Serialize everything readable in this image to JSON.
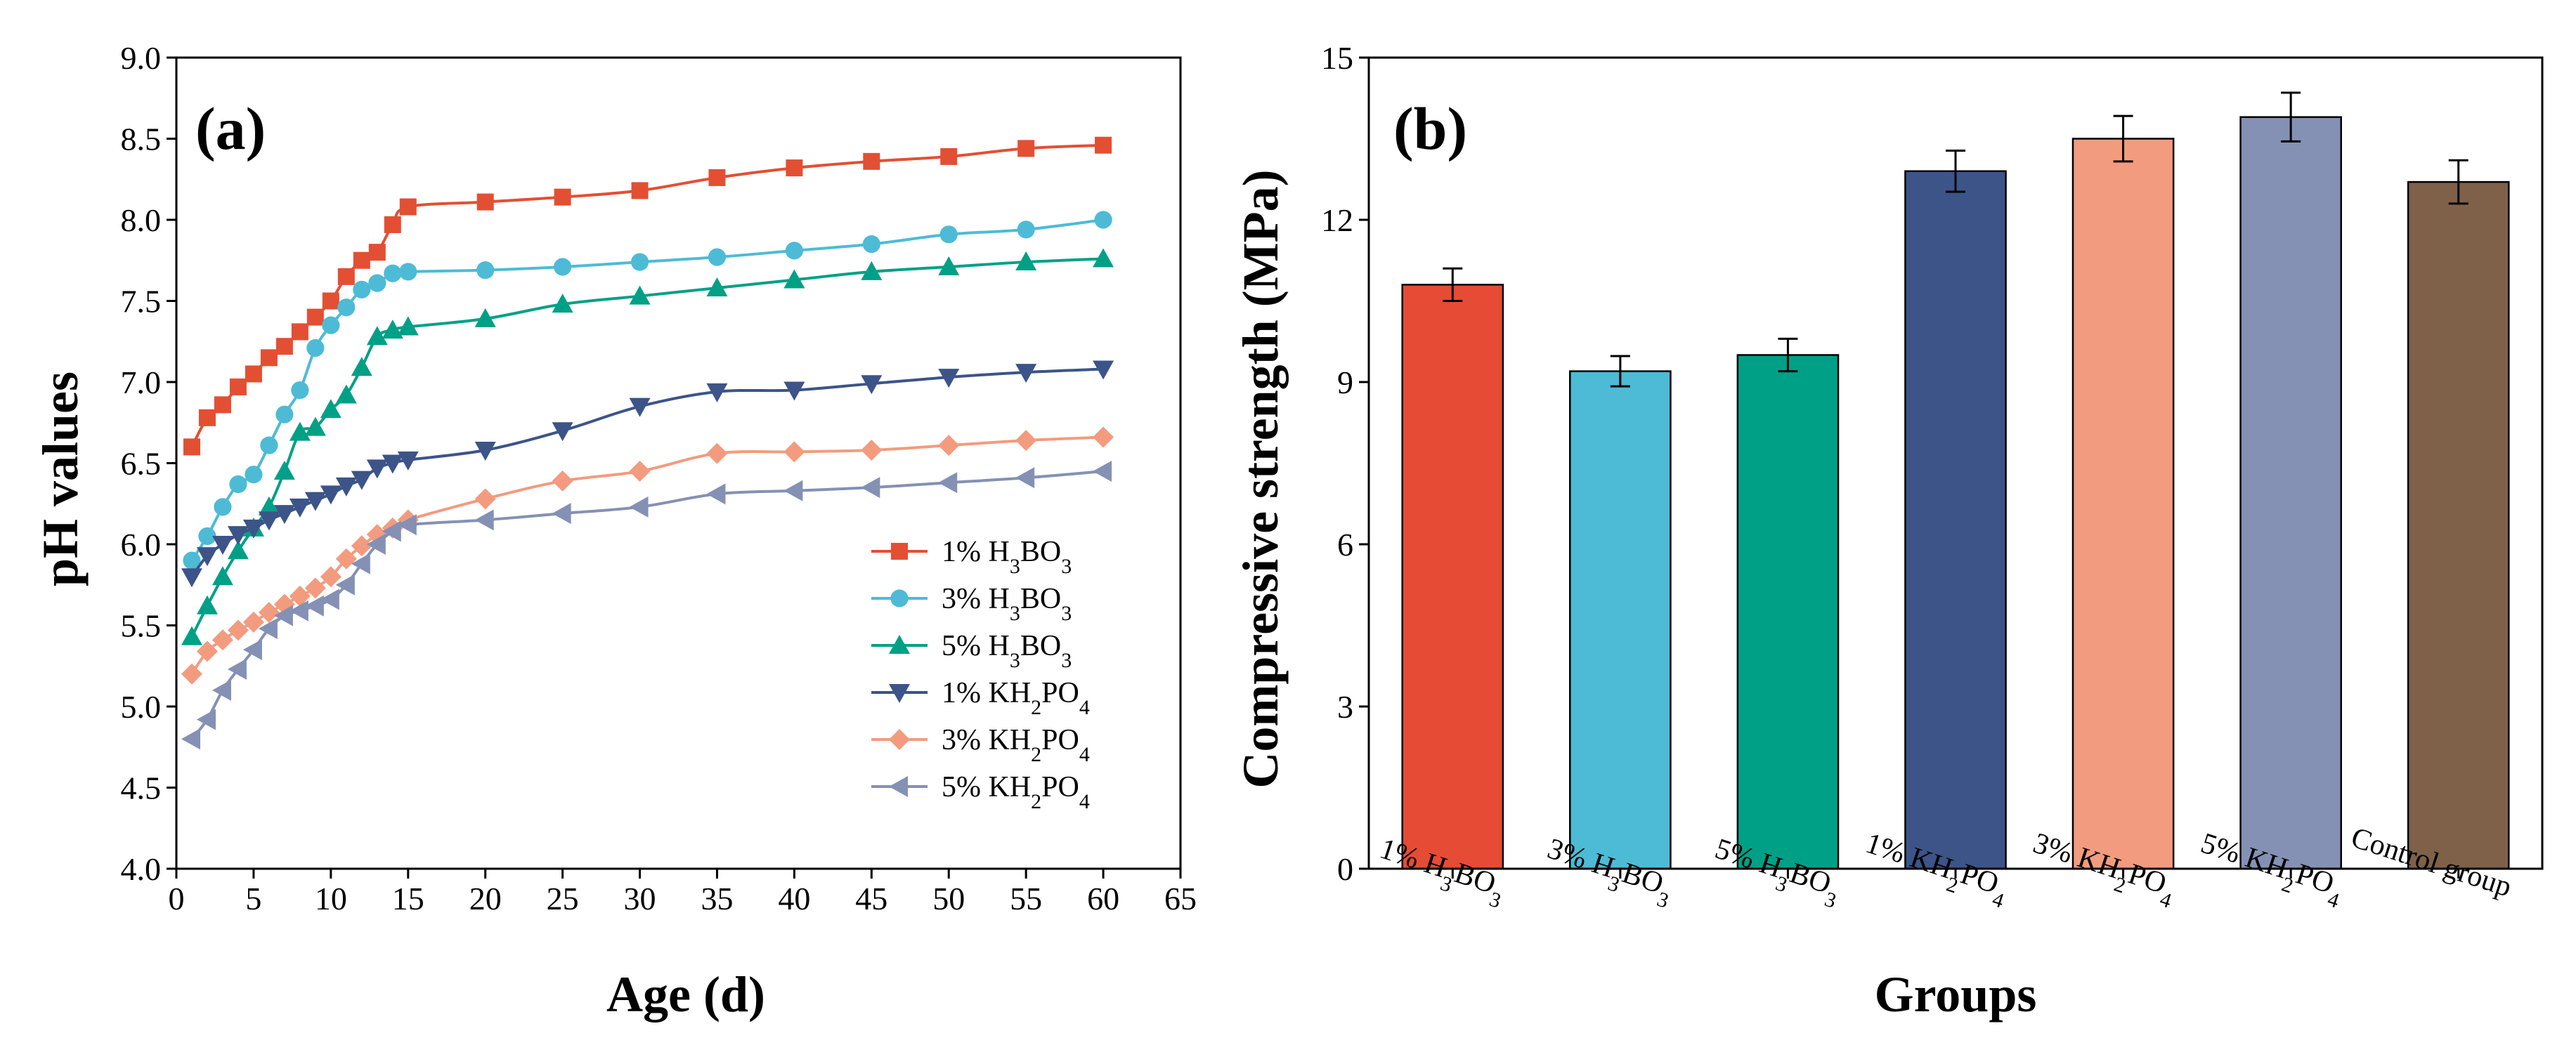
{
  "panels": [
    {
      "panel_label": "(a)",
      "colors": {
        "1% H3BO3": "#E34F33",
        "3% H3BO3": "#4DBBD6",
        "5% H3BO3": "#00A087",
        "1% KH2PO4": "#3C5488",
        "3% KH2PO4": "#F39B7F",
        "5% KH2PO4": "#8491B4"
      },
      "markers": {
        "1% H3BO3": "square",
        "3% H3BO3": "circle",
        "5% H3BO3": "triangle-up",
        "1% KH2PO4": "triangle-down",
        "3% KH2PO4": "diamond",
        "5% KH2PO4": "triangle-left"
      }
    },
    {
      "panel_label": "(b)",
      "colors": [
        "#E64B35",
        "#4DBBD5",
        "#00A087",
        "#3C5488",
        "#F39B7F",
        "#8491B4",
        "#7E6148"
      ]
    }
  ],
  "chart_data": [
    {
      "type": "line",
      "title": "",
      "xlabel": "Age (d)",
      "ylabel": "pH values",
      "xlim": [
        0,
        65
      ],
      "ylim": [
        4.0,
        9.0
      ],
      "x_ticks": [
        "0",
        "5",
        "10",
        "15",
        "20",
        "25",
        "30",
        "35",
        "40",
        "45",
        "50",
        "55",
        "60",
        "65"
      ],
      "y_ticks": [
        "4.0",
        "4.5",
        "5.0",
        "5.5",
        "6.0",
        "6.5",
        "7.0",
        "7.5",
        "8.0",
        "8.5",
        "9.0"
      ],
      "legend_position": "lower-right",
      "series": [
        {
          "name": "1% H3BO3",
          "label": {
            "pre": "1% H",
            "s1": "3",
            "mid": "BO",
            "s2": "3"
          },
          "x": [
            1,
            2,
            3,
            4,
            5,
            6,
            7,
            8,
            9,
            10,
            11,
            12,
            13,
            14,
            15,
            20,
            25,
            30,
            35,
            40,
            45,
            50,
            55,
            60
          ],
          "y": [
            6.6,
            6.78,
            6.86,
            6.97,
            7.05,
            7.15,
            7.22,
            7.31,
            7.4,
            7.5,
            7.65,
            7.75,
            7.8,
            7.97,
            8.08,
            8.11,
            8.14,
            8.18,
            8.26,
            8.32,
            8.36,
            8.39,
            8.44,
            8.46
          ]
        },
        {
          "name": "3% H3BO3",
          "label": {
            "pre": "3% H",
            "s1": "3",
            "mid": "BO",
            "s2": "3"
          },
          "x": [
            1,
            2,
            3,
            4,
            5,
            6,
            7,
            8,
            9,
            10,
            11,
            12,
            13,
            14,
            15,
            20,
            25,
            30,
            35,
            40,
            45,
            50,
            55,
            60
          ],
          "y": [
            5.9,
            6.05,
            6.23,
            6.37,
            6.43,
            6.61,
            6.8,
            6.95,
            7.21,
            7.35,
            7.46,
            7.57,
            7.61,
            7.67,
            7.68,
            7.69,
            7.71,
            7.74,
            7.77,
            7.81,
            7.85,
            7.91,
            7.94,
            8.0
          ]
        },
        {
          "name": "5% H3BO3",
          "label": {
            "pre": "5% H",
            "s1": "3",
            "mid": "BO",
            "s2": "3"
          },
          "x": [
            1,
            2,
            3,
            4,
            5,
            6,
            7,
            8,
            9,
            10,
            11,
            12,
            13,
            14,
            15,
            20,
            25,
            30,
            35,
            40,
            45,
            50,
            55,
            60
          ],
          "y": [
            5.43,
            5.62,
            5.8,
            5.96,
            6.1,
            6.23,
            6.45,
            6.69,
            6.72,
            6.83,
            6.92,
            7.09,
            7.28,
            7.32,
            7.34,
            7.39,
            7.48,
            7.53,
            7.58,
            7.63,
            7.68,
            7.71,
            7.74,
            7.76
          ]
        },
        {
          "name": "1% KH2PO4",
          "label": {
            "pre": "1% KH",
            "s1": "2",
            "mid": "PO",
            "s2": "4"
          },
          "x": [
            1,
            2,
            3,
            4,
            5,
            6,
            7,
            8,
            9,
            10,
            11,
            12,
            13,
            14,
            15,
            20,
            25,
            30,
            35,
            40,
            45,
            50,
            55,
            60
          ],
          "y": [
            5.8,
            5.93,
            6.0,
            6.06,
            6.1,
            6.15,
            6.19,
            6.23,
            6.27,
            6.31,
            6.36,
            6.4,
            6.47,
            6.5,
            6.52,
            6.58,
            6.7,
            6.85,
            6.94,
            6.95,
            6.99,
            7.03,
            7.06,
            7.08
          ]
        },
        {
          "name": "3% KH2PO4",
          "label": {
            "pre": "3% KH",
            "s1": "2",
            "mid": "PO",
            "s2": "4"
          },
          "x": [
            1,
            2,
            3,
            4,
            5,
            6,
            7,
            8,
            9,
            10,
            11,
            12,
            13,
            14,
            15,
            20,
            25,
            30,
            35,
            40,
            45,
            50,
            55,
            60
          ],
          "y": [
            5.2,
            5.34,
            5.41,
            5.47,
            5.52,
            5.58,
            5.63,
            5.68,
            5.73,
            5.8,
            5.91,
            5.99,
            6.06,
            6.1,
            6.15,
            6.28,
            6.39,
            6.45,
            6.56,
            6.57,
            6.58,
            6.61,
            6.64,
            6.66
          ]
        },
        {
          "name": "5% KH2PO4",
          "label": {
            "pre": "5% KH",
            "s1": "2",
            "mid": "PO",
            "s2": "4"
          },
          "x": [
            1,
            2,
            3,
            4,
            5,
            6,
            7,
            8,
            9,
            10,
            11,
            12,
            13,
            14,
            15,
            20,
            25,
            30,
            35,
            40,
            45,
            50,
            55,
            60
          ],
          "y": [
            4.8,
            4.92,
            5.1,
            5.23,
            5.35,
            5.48,
            5.56,
            5.59,
            5.62,
            5.66,
            5.75,
            5.88,
            6.0,
            6.08,
            6.12,
            6.15,
            6.19,
            6.23,
            6.31,
            6.33,
            6.35,
            6.38,
            6.41,
            6.45
          ]
        }
      ]
    },
    {
      "type": "bar",
      "title": "",
      "xlabel": "Groups",
      "ylabel": "Compressive strength (MPa)",
      "ylim": [
        0,
        15
      ],
      "y_ticks": [
        "0",
        "3",
        "6",
        "9",
        "12",
        "15"
      ],
      "categories": [
        "1% H3BO3",
        "3% H3BO3",
        "5% H3BO3",
        "1% KH2PO4",
        "3% KH2PO4",
        "5% KH2PO4",
        "Control group"
      ],
      "category_labels": [
        {
          "pre": "1% H",
          "s1": "3",
          "mid": "BO",
          "s2": "3"
        },
        {
          "pre": "3% H",
          "s1": "3",
          "mid": "BO",
          "s2": "3"
        },
        {
          "pre": "5% H",
          "s1": "3",
          "mid": "BO",
          "s2": "3"
        },
        {
          "pre": "1% KH",
          "s1": "2",
          "mid": "PO",
          "s2": "4"
        },
        {
          "pre": "3% KH",
          "s1": "2",
          "mid": "PO",
          "s2": "4"
        },
        {
          "pre": "5% KH",
          "s1": "2",
          "mid": "PO",
          "s2": "4"
        },
        {
          "pre": "Control group",
          "s1": "",
          "mid": "",
          "s2": ""
        }
      ],
      "values": [
        10.8,
        9.2,
        9.5,
        12.9,
        13.5,
        13.9,
        12.7
      ],
      "errors": [
        0.3,
        0.28,
        0.3,
        0.38,
        0.42,
        0.45,
        0.4
      ]
    }
  ]
}
